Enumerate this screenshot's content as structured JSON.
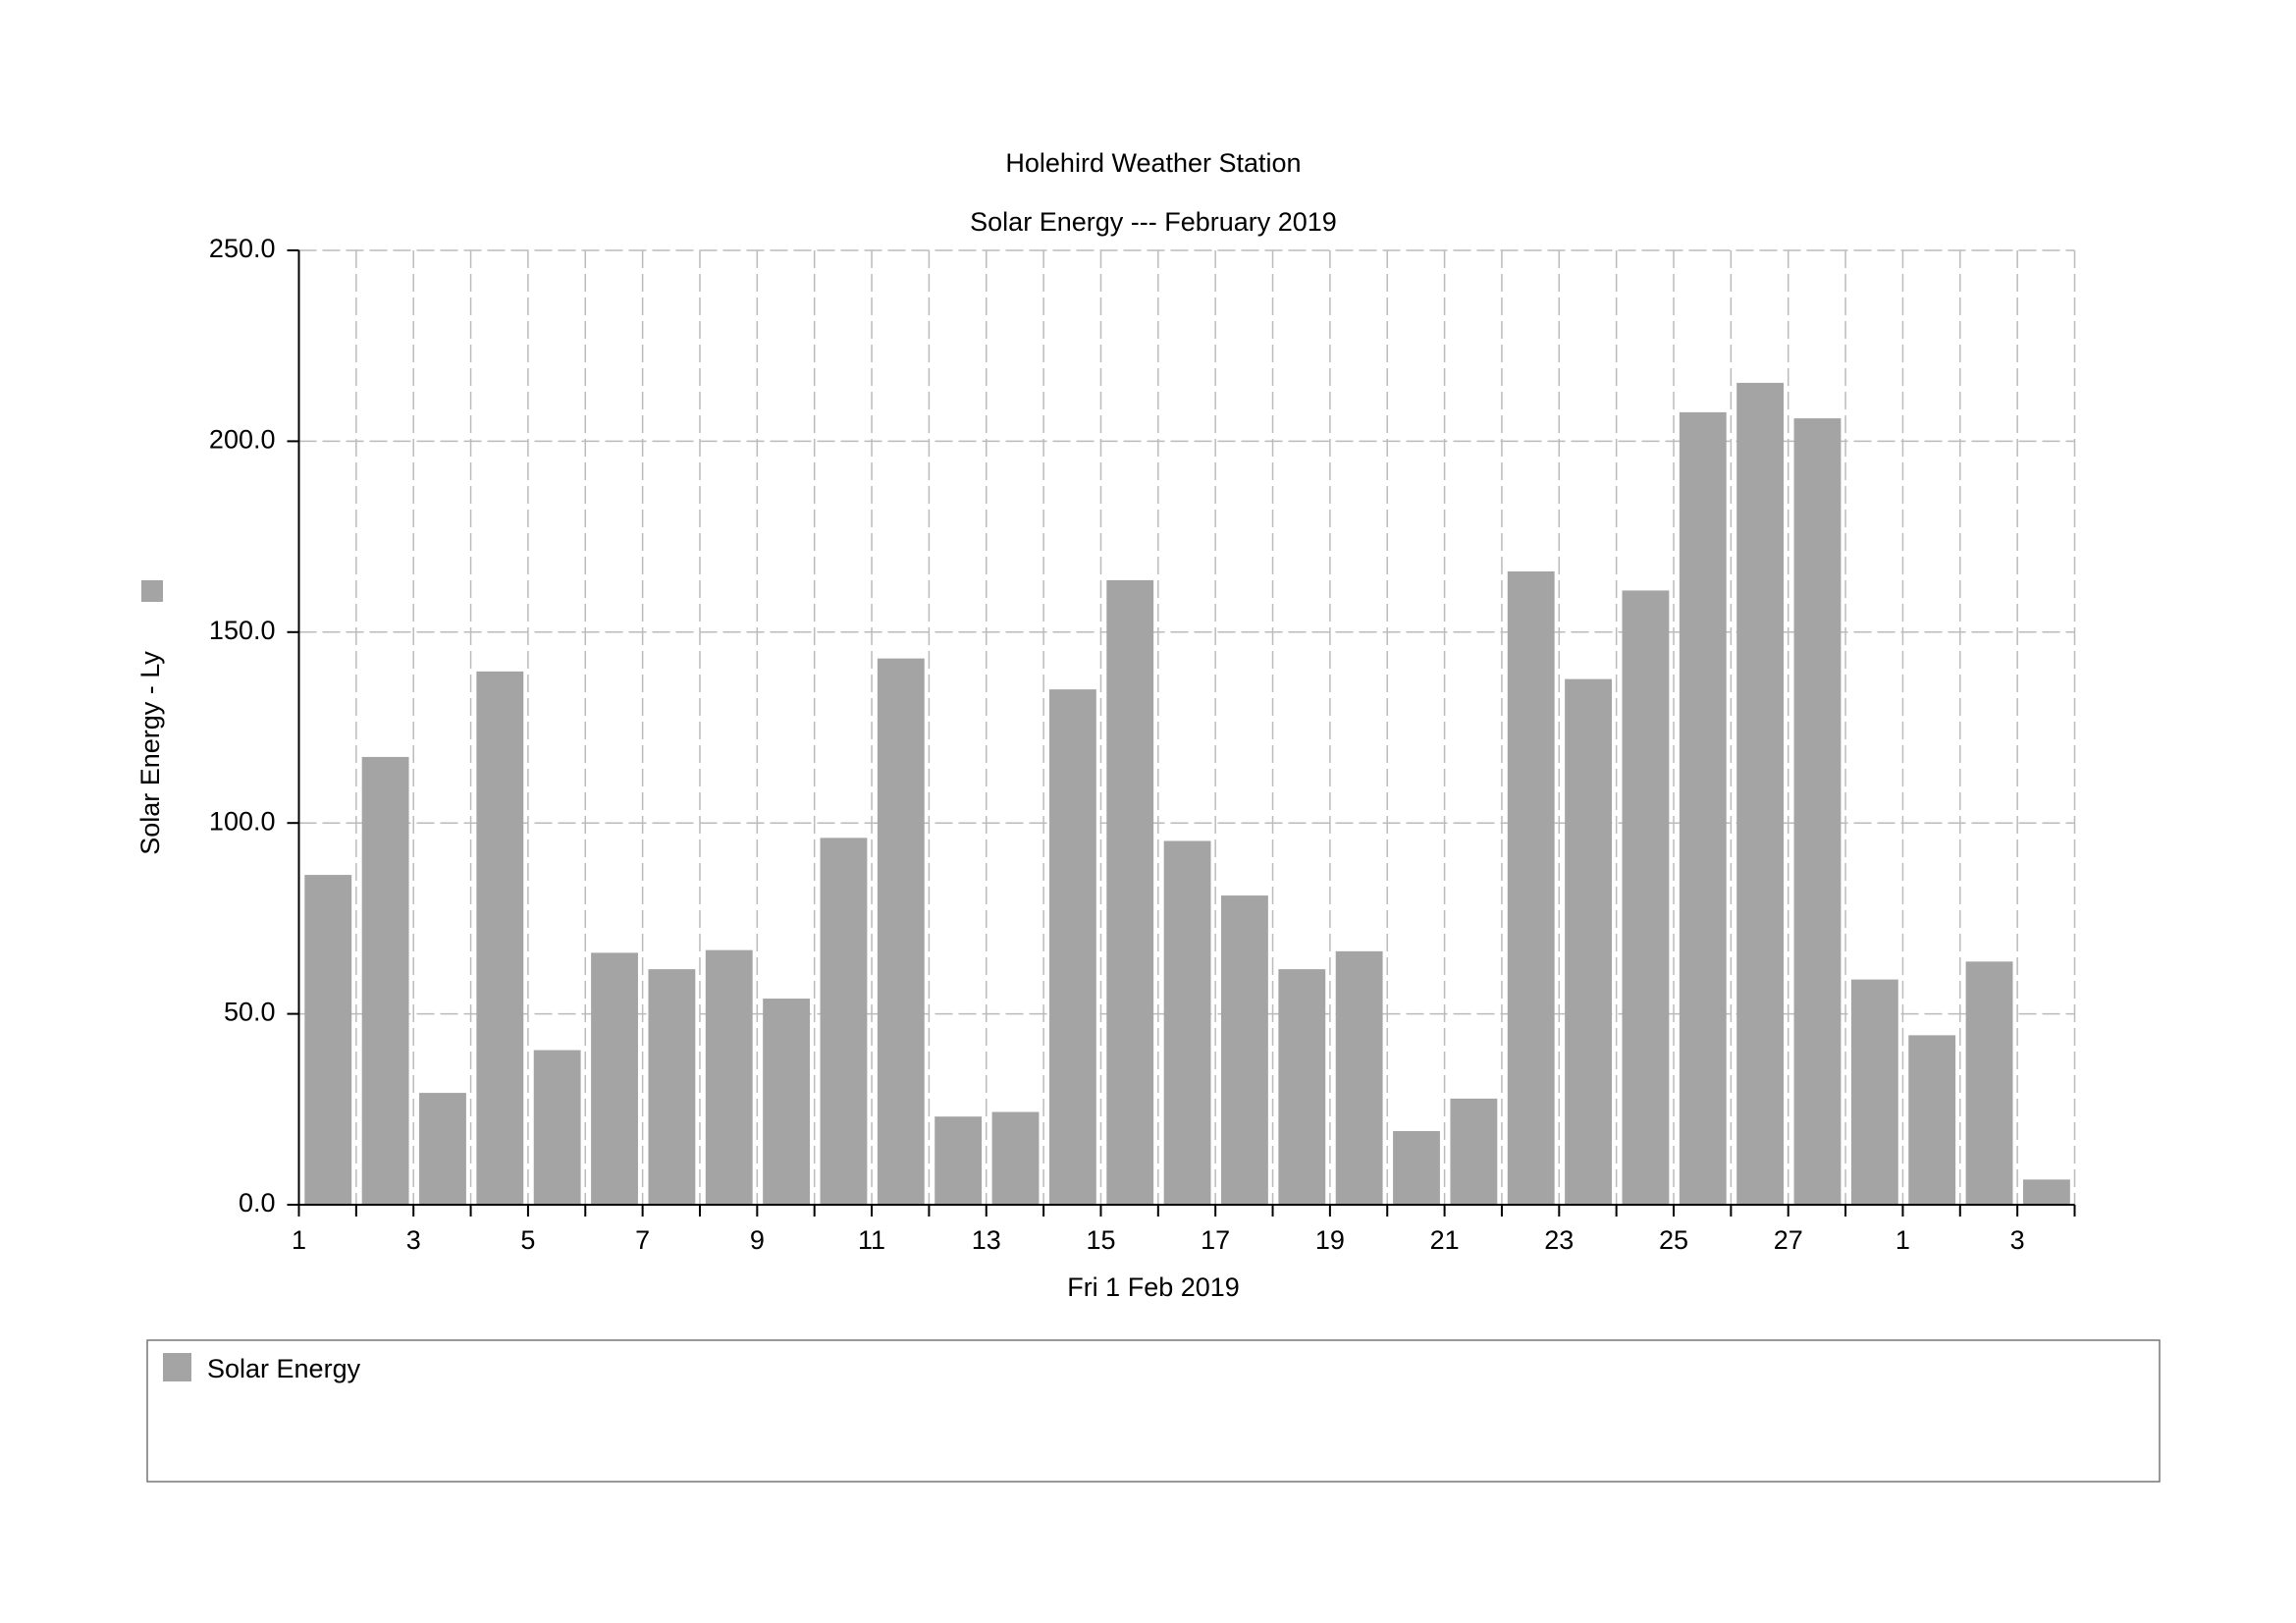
{
  "chart_data": {
    "type": "bar",
    "title": "Holehird Weather Station",
    "subtitle": "Solar Energy --- February 2019",
    "y_label": "Solar Energy - Ly",
    "x_label": "Fri 1 Feb 2019",
    "categories": [
      "1",
      null,
      "3",
      null,
      "5",
      null,
      "7",
      null,
      "9",
      null,
      "11",
      null,
      "13",
      null,
      "15",
      null,
      "17",
      null,
      "19",
      null,
      "21",
      null,
      "23",
      null,
      "25",
      null,
      "27",
      null,
      "1",
      null,
      "3"
    ],
    "series": [
      {
        "name": "Solar Energy",
        "color": "#a4a4a4",
        "values": [
          86.4,
          117.3,
          29.3,
          139.7,
          40.5,
          66.0,
          61.7,
          66.7,
          54.0,
          96.1,
          143.1,
          23.1,
          24.3,
          135.0,
          163.6,
          95.3,
          81.0,
          61.7,
          66.4,
          19.3,
          27.8,
          165.9,
          137.7,
          160.9,
          207.6,
          215.3,
          206.0,
          59.0,
          44.4,
          63.7,
          6.6
        ]
      }
    ],
    "ylim": [
      0,
      250
    ],
    "yticks": [
      {
        "value": 0,
        "label": "0.0"
      },
      {
        "value": 50,
        "label": "50.0"
      },
      {
        "value": 100,
        "label": "100.0"
      },
      {
        "value": 150,
        "label": "150.0"
      },
      {
        "value": 200,
        "label": "200.0"
      },
      {
        "value": 250,
        "label": "250.0"
      }
    ],
    "grid": true
  }
}
